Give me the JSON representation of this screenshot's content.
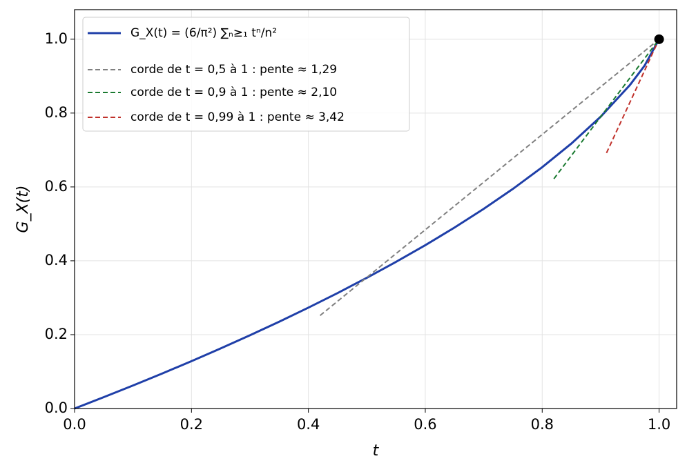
{
  "chart_data": {
    "type": "line",
    "xlabel": "t",
    "ylabel": "G_X(t)",
    "xlim": [
      0,
      1.03
    ],
    "ylim": [
      0,
      1.08
    ],
    "xticks": [
      {
        "value": 0,
        "label": "0.0"
      },
      0.2,
      0.4,
      0.6,
      0.8,
      {
        "value": 1,
        "label": "1.0"
      }
    ],
    "yticks": [
      {
        "value": 0,
        "label": "0.0"
      },
      0.2,
      0.4,
      0.6,
      0.8,
      {
        "value": 1,
        "label": "1.0"
      }
    ],
    "grid": true,
    "legend": "upper left",
    "series": [
      {
        "name": "G_X(t) = (6/π²) ∑ₙ≥₁ tⁿ/n²",
        "color": "#1f3fa8",
        "style": "solid",
        "x": [
          0,
          0.05,
          0.1,
          0.15,
          0.2,
          0.25,
          0.3,
          0.35,
          0.4,
          0.45,
          0.5,
          0.55,
          0.6,
          0.65,
          0.7,
          0.75,
          0.8,
          0.85,
          0.9,
          0.95,
          0.975,
          1
        ],
        "values": [
          0,
          0.03078,
          0.06238,
          0.09486,
          0.12827,
          0.16271,
          0.19826,
          0.23504,
          0.27313,
          0.31266,
          0.35396,
          0.3971,
          0.44231,
          0.48996,
          0.54067,
          0.59483,
          0.65339,
          0.71762,
          0.79012,
          0.87579,
          0.92807,
          1
        ]
      },
      {
        "name": "corde de t = 0,5 à 1 : pente ≈ 1,29",
        "color": "#808080",
        "style": "dashed",
        "x": [
          0.42,
          1
        ],
        "values": [
          0.2518,
          1
        ]
      },
      {
        "name": "corde de t = 0,9 à 1 : pente ≈ 2,10",
        "color": "#1a7a30",
        "style": "dashed",
        "x": [
          0.82,
          1
        ],
        "values": [
          0.622,
          1
        ]
      },
      {
        "name": "corde de t = 0,99 à 1 : pente ≈ 3,42",
        "color": "#c0312b",
        "style": "dashed",
        "x": [
          0.91,
          1
        ],
        "values": [
          0.692,
          1
        ]
      }
    ],
    "marker": {
      "x": [
        1
      ],
      "values": [
        1
      ],
      "color": "#000000"
    }
  }
}
